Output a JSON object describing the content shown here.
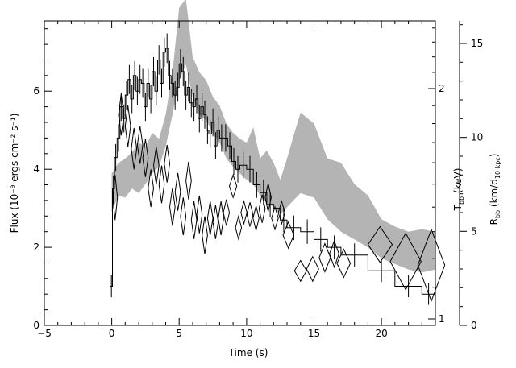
{
  "chart_data": {
    "type": "line",
    "title": "",
    "xlabel": "Time (s)",
    "xlim": [
      -5,
      24
    ],
    "x_ticks": [
      -5,
      0,
      5,
      10,
      15,
      20
    ],
    "left_axis": {
      "label": "Flux (10⁻⁹ ergs cm⁻² s⁻¹)",
      "ylim": [
        0,
        7.8
      ],
      "ticks": [
        0,
        2,
        4,
        6
      ]
    },
    "right_axis_temperature": {
      "label": "T_bb (keV)",
      "label_main": "T",
      "label_sub": "bb",
      "label_tail": " (keV)",
      "scale": "log",
      "ticks": [
        1,
        2
      ]
    },
    "right_axis_radius": {
      "label": "R_bb (km/d_10 kpc)",
      "label_main": "R",
      "label_sub": "bb",
      "label_mid": " (km/d",
      "label_sub2": "10 kpc",
      "label_tail": ")",
      "ylim": [
        0,
        16.2
      ],
      "ticks": [
        0,
        5,
        10,
        15
      ]
    },
    "series": [
      {
        "name": "Flux",
        "style": "histogram with error bars",
        "x": [
          -0.1,
          0.05,
          0.2,
          0.4,
          0.6,
          0.8,
          1.0,
          1.2,
          1.4,
          1.6,
          1.8,
          2.0,
          2.2,
          2.4,
          2.6,
          2.8,
          3.0,
          3.2,
          3.4,
          3.6,
          3.8,
          4.0,
          4.2,
          4.4,
          4.6,
          4.8,
          5.0,
          5.2,
          5.4,
          5.6,
          5.8,
          6.0,
          6.2,
          6.4,
          6.6,
          6.8,
          7.0,
          7.2,
          7.4,
          7.6,
          7.8,
          8.0,
          8.3,
          8.6,
          8.9,
          9.2,
          9.5,
          10.0,
          10.5,
          11.0,
          11.5,
          12.0,
          12.5,
          13.0,
          14.0,
          15.0,
          16.0,
          17.0,
          19.0,
          21.0,
          23.0,
          24.0
        ],
        "y": [
          1.0,
          3.5,
          4.3,
          4.8,
          5.6,
          5.3,
          5.9,
          6.3,
          5.8,
          6.4,
          6.0,
          6.3,
          6.2,
          5.6,
          6.2,
          5.8,
          6.5,
          6.0,
          6.8,
          6.2,
          7.0,
          7.1,
          6.4,
          6.2,
          5.9,
          6.1,
          6.7,
          6.5,
          5.9,
          6.1,
          5.7,
          5.6,
          5.8,
          5.3,
          5.6,
          5.4,
          5.0,
          4.9,
          5.2,
          4.6,
          5.0,
          4.8,
          4.8,
          4.6,
          4.2,
          4.0,
          4.1,
          4.0,
          3.6,
          3.4,
          3.1,
          3.0,
          2.7,
          2.5,
          2.4,
          2.2,
          2.0,
          1.8,
          1.4,
          1.0,
          0.8,
          0.75
        ]
      },
      {
        "name": "Temperature band",
        "style": "shaded band",
        "x": [
          0.0,
          0.5,
          1.0,
          1.5,
          2.0,
          2.5,
          3.0,
          3.5,
          4.0,
          4.5,
          5.0,
          5.5,
          6.0,
          6.5,
          7.0,
          7.5,
          8.0,
          8.5,
          9.0,
          9.5,
          10.0,
          10.5,
          11.0,
          11.5,
          12.0,
          12.5,
          13.0,
          13.5,
          14.0,
          15.0,
          16.0,
          17.0,
          18.0,
          19.0,
          20.0,
          21.0,
          22.0,
          23.0,
          24.0
        ],
        "upper_keV": [
          1.55,
          1.6,
          1.62,
          1.65,
          1.7,
          1.68,
          1.75,
          1.72,
          1.85,
          2.1,
          2.55,
          2.62,
          2.2,
          2.1,
          2.05,
          1.95,
          1.9,
          1.8,
          1.75,
          1.72,
          1.7,
          1.78,
          1.62,
          1.66,
          1.6,
          1.52,
          1.62,
          1.74,
          1.86,
          1.8,
          1.62,
          1.6,
          1.5,
          1.45,
          1.35,
          1.32,
          1.3,
          1.31,
          1.3
        ],
        "lower_keV": [
          1.38,
          1.45,
          1.44,
          1.48,
          1.46,
          1.5,
          1.55,
          1.58,
          1.68,
          1.85,
          2.05,
          2.15,
          1.95,
          1.85,
          1.82,
          1.75,
          1.7,
          1.62,
          1.58,
          1.55,
          1.52,
          1.5,
          1.45,
          1.42,
          1.4,
          1.37,
          1.4,
          1.43,
          1.46,
          1.44,
          1.35,
          1.3,
          1.27,
          1.24,
          1.2,
          1.18,
          1.16,
          1.15,
          1.16
        ]
      },
      {
        "name": "Radius",
        "style": "diamonds",
        "x": [
          0.25,
          0.7,
          1.2,
          1.65,
          2.1,
          2.5,
          2.9,
          3.3,
          3.7,
          4.1,
          4.5,
          4.9,
          5.3,
          5.7,
          6.1,
          6.5,
          6.9,
          7.3,
          7.7,
          8.1,
          8.5,
          9.0,
          9.4,
          9.8,
          10.25,
          10.7,
          11.15,
          11.6,
          12.1,
          12.6,
          13.1,
          14.0,
          14.9,
          15.8,
          16.5,
          17.2,
          19.9,
          21.8,
          23.7
        ],
        "y_km": [
          6.8,
          11.2,
          10.6,
          9.4,
          9.6,
          8.9,
          7.3,
          8.5,
          7.5,
          8.6,
          6.3,
          7.1,
          5.8,
          7.7,
          5.6,
          5.9,
          4.8,
          5.7,
          5.5,
          5.7,
          6.0,
          7.4,
          5.2,
          6.0,
          5.9,
          5.7,
          6.2,
          6.8,
          5.7,
          6.0,
          4.8,
          2.9,
          3.0,
          3.6,
          3.8,
          3.3,
          4.3,
          3.4,
          3.2
        ],
        "w_s": [
          0.35,
          0.4,
          0.4,
          0.4,
          0.4,
          0.4,
          0.4,
          0.4,
          0.4,
          0.4,
          0.4,
          0.4,
          0.4,
          0.4,
          0.4,
          0.4,
          0.4,
          0.4,
          0.4,
          0.4,
          0.45,
          0.55,
          0.45,
          0.45,
          0.45,
          0.45,
          0.45,
          0.45,
          0.5,
          0.5,
          0.8,
          0.9,
          0.9,
          0.85,
          0.7,
          1.0,
          1.8,
          2.3,
          2.0
        ],
        "h_km": [
          2.4,
          2.2,
          2.2,
          2.2,
          2.0,
          2.0,
          2.0,
          2.0,
          2.0,
          2.0,
          2.0,
          2.0,
          2.0,
          2.0,
          2.0,
          2.0,
          2.0,
          1.8,
          1.8,
          1.8,
          1.4,
          1.2,
          1.2,
          1.2,
          1.3,
          1.3,
          1.5,
          1.5,
          1.2,
          1.2,
          1.4,
          1.1,
          1.3,
          1.5,
          1.4,
          1.5,
          1.9,
          3.0,
          3.8
        ]
      }
    ]
  }
}
